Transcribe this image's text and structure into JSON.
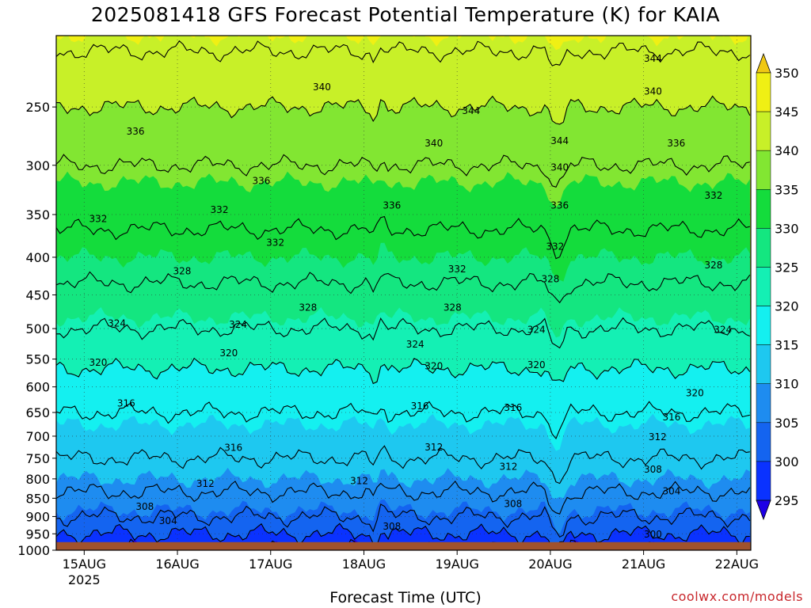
{
  "title": "2025081418 GFS Forecast Potential Temperature (K) for KAIA",
  "watermark": "coolwx.com/models",
  "colors": {
    "ground": "#a0522d",
    "contour": "#000000",
    "watermark": "#c8282d"
  },
  "chart_data": {
    "type": "heatmap",
    "title": "2025081418 GFS Forecast Potential Temperature (K) for KAIA",
    "xlabel": "Forecast Time (UTC)",
    "ylabel": "",
    "x_ticks": [
      "15AUG",
      "16AUG",
      "17AUG",
      "18AUG",
      "19AUG",
      "20AUG",
      "21AUG",
      "22AUG"
    ],
    "x_year_label": "2025",
    "x_range_days": [
      -0.3,
      7.15
    ],
    "y_ticks": [
      250,
      300,
      350,
      400,
      450,
      500,
      550,
      600,
      650,
      700,
      750,
      800,
      850,
      900,
      950,
      1000
    ],
    "y_range_hpa": [
      200,
      1000
    ],
    "y_scale": "log-pressure (inverted)",
    "ground_below_hpa": 975,
    "grid": true,
    "colorbar": {
      "levels": [
        295,
        300,
        305,
        310,
        315,
        320,
        325,
        330,
        335,
        340,
        345,
        350
      ],
      "colors": [
        "#1e00e6",
        "#0a32ff",
        "#1464f0",
        "#1e8cf0",
        "#1ec8f0",
        "#14f0f0",
        "#14f0b4",
        "#14e680",
        "#14dc3c",
        "#82e632",
        "#c8f028",
        "#f0f014",
        "#f0c814"
      ],
      "labels": [
        "295",
        "300",
        "305",
        "310",
        "315",
        "320",
        "325",
        "330",
        "335",
        "340",
        "345",
        "350"
      ]
    },
    "contour_interval_K": 4,
    "profile": {
      "pressure_hpa": [
        200,
        250,
        300,
        350,
        400,
        450,
        500,
        550,
        600,
        650,
        700,
        750,
        800,
        850,
        900,
        950,
        975
      ],
      "theta_K": [
        345,
        340,
        336,
        333,
        330,
        327,
        324,
        321,
        318,
        316,
        314,
        312,
        310,
        307,
        304,
        300,
        298
      ]
    },
    "contour_labels": [
      {
        "v": "340",
        "d": 2.55,
        "p": 235
      },
      {
        "v": "336",
        "d": 0.55,
        "p": 270
      },
      {
        "v": "336",
        "d": 1.9,
        "p": 315
      },
      {
        "v": "332",
        "d": 0.15,
        "p": 355
      },
      {
        "v": "332",
        "d": 1.45,
        "p": 345
      },
      {
        "v": "336",
        "d": 3.3,
        "p": 340
      },
      {
        "v": "344",
        "d": 4.15,
        "p": 253
      },
      {
        "v": "340",
        "d": 3.75,
        "p": 280
      },
      {
        "v": "344",
        "d": 5.1,
        "p": 278
      },
      {
        "v": "340",
        "d": 5.1,
        "p": 302
      },
      {
        "v": "336",
        "d": 5.1,
        "p": 340
      },
      {
        "v": "344",
        "d": 6.1,
        "p": 215
      },
      {
        "v": "340",
        "d": 6.1,
        "p": 238
      },
      {
        "v": "336",
        "d": 6.35,
        "p": 280
      },
      {
        "v": "332",
        "d": 6.75,
        "p": 330
      },
      {
        "v": "332",
        "d": 2.05,
        "p": 382
      },
      {
        "v": "332",
        "d": 4.0,
        "p": 415
      },
      {
        "v": "332",
        "d": 5.05,
        "p": 387
      },
      {
        "v": "328",
        "d": 1.05,
        "p": 418
      },
      {
        "v": "328",
        "d": 2.4,
        "p": 468
      },
      {
        "v": "328",
        "d": 3.95,
        "p": 468
      },
      {
        "v": "328",
        "d": 5.0,
        "p": 428
      },
      {
        "v": "328",
        "d": 6.75,
        "p": 410
      },
      {
        "v": "324",
        "d": 0.35,
        "p": 492
      },
      {
        "v": "324",
        "d": 1.65,
        "p": 494
      },
      {
        "v": "324",
        "d": 3.55,
        "p": 525
      },
      {
        "v": "324",
        "d": 4.85,
        "p": 502
      },
      {
        "v": "324",
        "d": 6.85,
        "p": 502
      },
      {
        "v": "320",
        "d": 0.15,
        "p": 556
      },
      {
        "v": "320",
        "d": 1.55,
        "p": 540
      },
      {
        "v": "320",
        "d": 3.75,
        "p": 562
      },
      {
        "v": "320",
        "d": 4.85,
        "p": 560
      },
      {
        "v": "320",
        "d": 6.55,
        "p": 612
      },
      {
        "v": "316",
        "d": 0.45,
        "p": 632
      },
      {
        "v": "316",
        "d": 3.6,
        "p": 637
      },
      {
        "v": "316",
        "d": 4.6,
        "p": 640
      },
      {
        "v": "316",
        "d": 6.3,
        "p": 660
      },
      {
        "v": "316",
        "d": 1.6,
        "p": 726
      },
      {
        "v": "312",
        "d": 3.75,
        "p": 725
      },
      {
        "v": "312",
        "d": 6.15,
        "p": 702
      },
      {
        "v": "312",
        "d": 1.3,
        "p": 812
      },
      {
        "v": "312",
        "d": 2.95,
        "p": 805
      },
      {
        "v": "312",
        "d": 4.55,
        "p": 770
      },
      {
        "v": "308",
        "d": 0.65,
        "p": 873
      },
      {
        "v": "308",
        "d": 4.6,
        "p": 865
      },
      {
        "v": "308",
        "d": 6.1,
        "p": 777
      },
      {
        "v": "304",
        "d": 0.9,
        "p": 912
      },
      {
        "v": "304",
        "d": 6.3,
        "p": 832
      },
      {
        "v": "308",
        "d": 3.3,
        "p": 928
      },
      {
        "v": "300",
        "d": 6.1,
        "p": 952
      }
    ]
  }
}
